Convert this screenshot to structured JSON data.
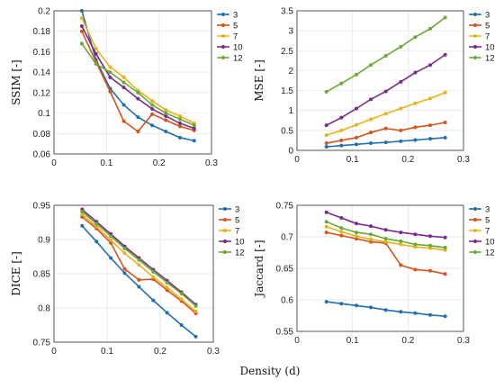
{
  "figure": {
    "xlabel": "Density (d)"
  },
  "series_colors": {
    "3": "#1f6fb2",
    "5": "#d4541c",
    "7": "#e8b21e",
    "10": "#7a2a8c",
    "12": "#6aa836"
  },
  "chart_data": [
    {
      "type": "line",
      "ylabel": "SSIM [-]",
      "xlim": [
        0,
        0.3
      ],
      "ylim": [
        0.06,
        0.2
      ],
      "xticks": [
        "0",
        "0.1",
        "0.2",
        "0.3"
      ],
      "yticks": [
        "0.06",
        "0.08",
        "0.1",
        "0.12",
        "0.14",
        "0.16",
        "0.18",
        "0.2"
      ],
      "x": [
        0.053,
        0.08,
        0.107,
        0.133,
        0.16,
        0.187,
        0.213,
        0.24,
        0.267
      ],
      "series": [
        {
          "name": "3",
          "values": [
            0.2,
            0.152,
            0.124,
            0.108,
            0.096,
            0.088,
            0.082,
            0.076,
            0.073
          ]
        },
        {
          "name": "5",
          "values": [
            0.18,
            0.15,
            0.121,
            0.092,
            0.082,
            0.099,
            0.093,
            0.087,
            0.083
          ]
        },
        {
          "name": "7",
          "values": [
            0.193,
            0.163,
            0.145,
            0.135,
            0.122,
            0.112,
            0.103,
            0.097,
            0.09
          ]
        },
        {
          "name": "10",
          "values": [
            0.185,
            0.158,
            0.135,
            0.125,
            0.114,
            0.104,
            0.097,
            0.09,
            0.085
          ]
        },
        {
          "name": "12",
          "values": [
            0.168,
            0.148,
            0.14,
            0.13,
            0.12,
            0.108,
            0.1,
            0.094,
            0.088
          ]
        }
      ],
      "legend": "right",
      "grid": true
    },
    {
      "type": "line",
      "ylabel": "MSE [-]",
      "xlim": [
        0,
        0.3
      ],
      "ylim": [
        0,
        3.5
      ],
      "xticks": [
        "0",
        "0.1",
        "0.2",
        "0.3"
      ],
      "yticks": [
        "0",
        "0.5",
        "1",
        "1.5",
        "2",
        "2.5",
        "3",
        "3.5"
      ],
      "x": [
        0.053,
        0.08,
        0.107,
        0.133,
        0.16,
        0.187,
        0.213,
        0.24,
        0.267
      ],
      "series": [
        {
          "name": "3",
          "values": [
            0.09,
            0.12,
            0.15,
            0.18,
            0.2,
            0.23,
            0.26,
            0.29,
            0.32
          ]
        },
        {
          "name": "5",
          "values": [
            0.18,
            0.25,
            0.32,
            0.45,
            0.55,
            0.5,
            0.58,
            0.63,
            0.7
          ]
        },
        {
          "name": "7",
          "values": [
            0.38,
            0.5,
            0.64,
            0.78,
            0.92,
            1.05,
            1.18,
            1.3,
            1.45
          ]
        },
        {
          "name": "10",
          "values": [
            0.63,
            0.82,
            1.05,
            1.28,
            1.48,
            1.72,
            1.95,
            2.14,
            2.4
          ]
        },
        {
          "name": "12",
          "values": [
            1.47,
            1.68,
            1.9,
            2.14,
            2.37,
            2.6,
            2.84,
            3.05,
            3.33
          ]
        }
      ],
      "legend": "right",
      "grid": true
    },
    {
      "type": "line",
      "ylabel": "DICE [-]",
      "xlim": [
        0,
        0.3
      ],
      "ylim": [
        0.75,
        0.95
      ],
      "xticks": [
        "0",
        "0.1",
        "0.2",
        "0.3"
      ],
      "yticks": [
        "0.75",
        "0.8",
        "0.85",
        "0.9",
        "0.95"
      ],
      "x": [
        0.053,
        0.08,
        0.107,
        0.133,
        0.16,
        0.187,
        0.213,
        0.24,
        0.267
      ],
      "series": [
        {
          "name": "3",
          "values": [
            0.92,
            0.897,
            0.873,
            0.851,
            0.831,
            0.811,
            0.793,
            0.775,
            0.758
          ]
        },
        {
          "name": "5",
          "values": [
            0.933,
            0.916,
            0.895,
            0.857,
            0.841,
            0.842,
            0.826,
            0.81,
            0.792
          ]
        },
        {
          "name": "7",
          "values": [
            0.937,
            0.919,
            0.899,
            0.88,
            0.863,
            0.845,
            0.83,
            0.813,
            0.795
          ]
        },
        {
          "name": "10",
          "values": [
            0.944,
            0.926,
            0.908,
            0.89,
            0.873,
            0.856,
            0.84,
            0.823,
            0.805
          ]
        },
        {
          "name": "12",
          "values": [
            0.941,
            0.923,
            0.905,
            0.887,
            0.87,
            0.853,
            0.837,
            0.821,
            0.803
          ]
        }
      ],
      "legend": "right",
      "grid": true
    },
    {
      "type": "line",
      "ylabel": "Jaccard [-]",
      "xlim": [
        0,
        0.3
      ],
      "ylim": [
        0.55,
        0.75
      ],
      "xticks": [
        "0",
        "0.1",
        "0.2",
        "0.3"
      ],
      "yticks": [
        "0.55",
        "0.6",
        "0.65",
        "0.7",
        "0.75"
      ],
      "x": [
        0.053,
        0.08,
        0.107,
        0.133,
        0.16,
        0.187,
        0.213,
        0.24,
        0.267
      ],
      "series": [
        {
          "name": "3",
          "values": [
            0.597,
            0.594,
            0.591,
            0.588,
            0.584,
            0.581,
            0.579,
            0.576,
            0.574
          ]
        },
        {
          "name": "5",
          "values": [
            0.707,
            0.702,
            0.697,
            0.692,
            0.69,
            0.655,
            0.648,
            0.646,
            0.641
          ]
        },
        {
          "name": "7",
          "values": [
            0.716,
            0.708,
            0.701,
            0.696,
            0.692,
            0.688,
            0.684,
            0.682,
            0.679
          ]
        },
        {
          "name": "10",
          "values": [
            0.739,
            0.73,
            0.721,
            0.717,
            0.711,
            0.707,
            0.704,
            0.701,
            0.699
          ]
        },
        {
          "name": "12",
          "values": [
            0.724,
            0.714,
            0.707,
            0.704,
            0.697,
            0.693,
            0.688,
            0.686,
            0.683
          ]
        }
      ],
      "legend": "right",
      "grid": true
    }
  ]
}
